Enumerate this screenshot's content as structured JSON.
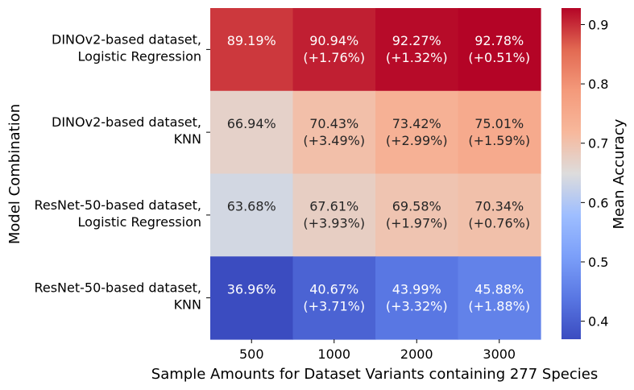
{
  "chart_data": {
    "type": "heatmap",
    "xlabel": "Sample Amounts for Dataset Variants containing 277 Species",
    "ylabel": "Model Combination",
    "colorbar_label": "Mean Accuracy",
    "x_categories": [
      "500",
      "1000",
      "2000",
      "3000"
    ],
    "y_categories": [
      [
        "DINOv2-based dataset,",
        "Logistic Regression"
      ],
      [
        "DINOv2-based dataset,",
        "KNN"
      ],
      [
        "ResNet-50-based dataset,",
        "Logistic Regression"
      ],
      [
        "ResNet-50-based dataset,",
        "KNN"
      ]
    ],
    "values": [
      [
        0.8919,
        0.9094,
        0.9227,
        0.9278
      ],
      [
        0.6694,
        0.7043,
        0.7342,
        0.7501
      ],
      [
        0.6368,
        0.6761,
        0.6958,
        0.7034
      ],
      [
        0.3696,
        0.4067,
        0.4399,
        0.4588
      ]
    ],
    "cell_labels": [
      [
        [
          "89.19%"
        ],
        [
          "90.94%",
          "(+1.76%)"
        ],
        [
          "92.27%",
          "(+1.32%)"
        ],
        [
          "92.78%",
          "(+0.51%)"
        ]
      ],
      [
        [
          "66.94%"
        ],
        [
          "70.43%",
          "(+3.49%)"
        ],
        [
          "73.42%",
          "(+2.99%)"
        ],
        [
          "75.01%",
          "(+1.59%)"
        ]
      ],
      [
        [
          "63.68%"
        ],
        [
          "67.61%",
          "(+3.93%)"
        ],
        [
          "69.58%",
          "(+1.97%)"
        ],
        [
          "70.34%",
          "(+0.76%)"
        ]
      ],
      [
        [
          "36.96%"
        ],
        [
          "40.67%",
          "(+3.71%)"
        ],
        [
          "43.99%",
          "(+3.32%)"
        ],
        [
          "45.88%",
          "(+1.88%)"
        ]
      ]
    ],
    "colormap": "coolwarm",
    "color_range": [
      0.3696,
      0.9278
    ],
    "colorbar_ticks": [
      "0.4",
      "0.5",
      "0.6",
      "0.7",
      "0.8",
      "0.9"
    ],
    "colorbar_tick_values": [
      0.4,
      0.5,
      0.6,
      0.7,
      0.8,
      0.9
    ],
    "legend": "colorbar right"
  }
}
